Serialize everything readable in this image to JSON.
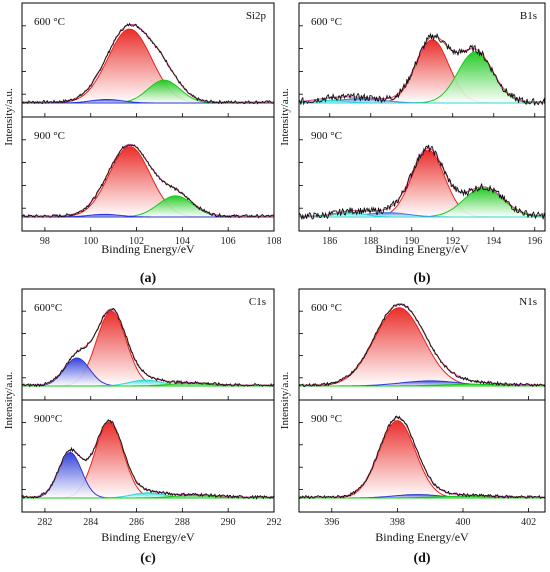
{
  "chart_data": [
    {
      "id": "a",
      "type": "line",
      "panel_label": "(a)",
      "element": "Si2p",
      "xlabel": "Binding Energy/eV",
      "ylabel": "Intensity/a.u.",
      "xlim": [
        97,
        108
      ],
      "xticks": [
        "98",
        "100",
        "102",
        "104",
        "106",
        "108"
      ],
      "xtick_values": [
        98,
        100,
        102,
        104,
        106,
        108
      ],
      "subplots": [
        {
          "temp": "600 °C",
          "peak_max": 1.0,
          "components": [
            {
              "color": "#e8231f",
              "center": 101.7,
              "sigma": 0.95,
              "height": 0.84
            },
            {
              "color": "#19c819",
              "center": 103.2,
              "sigma": 0.7,
              "height": 0.26
            },
            {
              "color": "#2838d8",
              "center": 100.7,
              "sigma": 0.7,
              "height": 0.04
            }
          ]
        },
        {
          "temp": "900 °C",
          "peak_max": 1.0,
          "components": [
            {
              "color": "#e8231f",
              "center": 101.7,
              "sigma": 0.9,
              "height": 0.8
            },
            {
              "color": "#19c819",
              "center": 103.7,
              "sigma": 0.75,
              "height": 0.24
            },
            {
              "color": "#2838d8",
              "center": 100.6,
              "sigma": 0.7,
              "height": 0.03
            }
          ]
        }
      ]
    },
    {
      "id": "b",
      "type": "line",
      "panel_label": "(b)",
      "element": "B1s",
      "xlabel": "Binding Energy/eV",
      "ylabel": "Intensity/a.u.",
      "xlim": [
        184.5,
        196.5
      ],
      "xticks": [
        "186",
        "188",
        "190",
        "192",
        "194",
        "196"
      ],
      "xtick_values": [
        186,
        188,
        190,
        192,
        194,
        196
      ],
      "subplots": [
        {
          "temp": "600 °C",
          "components": [
            {
              "color": "#e8231f",
              "center": 191.0,
              "sigma": 0.8,
              "height": 0.72
            },
            {
              "color": "#19c819",
              "center": 193.1,
              "sigma": 0.85,
              "height": 0.58
            },
            {
              "color": "#3d7ee0",
              "center": 187.5,
              "sigma": 1.1,
              "height": 0.05
            },
            {
              "color": "#2bd8d8",
              "center": 186.0,
              "sigma": 0.8,
              "height": 0.03
            }
          ]
        },
        {
          "temp": "900 °C",
          "components": [
            {
              "color": "#e8231f",
              "center": 190.8,
              "sigma": 0.8,
              "height": 0.76
            },
            {
              "color": "#19c819",
              "center": 193.5,
              "sigma": 0.95,
              "height": 0.33
            },
            {
              "color": "#3d7ee0",
              "center": 188.8,
              "sigma": 1.0,
              "height": 0.05
            },
            {
              "color": "#2bd8d8",
              "center": 187.0,
              "sigma": 0.7,
              "height": 0.05
            }
          ]
        }
      ]
    },
    {
      "id": "c",
      "type": "line",
      "panel_label": "(c)",
      "element": "C1s",
      "xlabel": "Binding Energy/eV",
      "ylabel": "Intensity/a.u.",
      "xlim": [
        281,
        292
      ],
      "xticks": [
        "282",
        "284",
        "286",
        "288",
        "290",
        "292"
      ],
      "xtick_values": [
        282,
        284,
        286,
        288,
        290,
        292
      ],
      "subplots": [
        {
          "temp": "600°C",
          "components": [
            {
              "color": "#e8231f",
              "center": 284.9,
              "sigma": 0.65,
              "height": 0.88
            },
            {
              "color": "#2838d8",
              "center": 283.4,
              "sigma": 0.55,
              "height": 0.33
            },
            {
              "color": "#2bd8d8",
              "center": 286.4,
              "sigma": 0.7,
              "height": 0.07
            },
            {
              "color": "#19c819",
              "center": 288.3,
              "sigma": 0.9,
              "height": 0.03
            }
          ]
        },
        {
          "temp": "900°C",
          "components": [
            {
              "color": "#e8231f",
              "center": 284.8,
              "sigma": 0.62,
              "height": 0.88
            },
            {
              "color": "#2838d8",
              "center": 283.1,
              "sigma": 0.5,
              "height": 0.53
            },
            {
              "color": "#2bd8d8",
              "center": 286.5,
              "sigma": 0.7,
              "height": 0.06
            },
            {
              "color": "#19c819",
              "center": 288.5,
              "sigma": 0.9,
              "height": 0.03
            }
          ]
        }
      ]
    },
    {
      "id": "d",
      "type": "line",
      "panel_label": "(d)",
      "element": "N1s",
      "xlabel": "Binding Energy/eV",
      "ylabel": "Intensity/a.u.",
      "xlim": [
        395,
        402.5
      ],
      "xticks": [
        "396",
        "398",
        "400",
        "402"
      ],
      "xtick_values": [
        396,
        398,
        400,
        402
      ],
      "subplots": [
        {
          "temp": "600 °C",
          "components": [
            {
              "color": "#e8231f",
              "center": 398.05,
              "sigma": 0.75,
              "height": 0.92
            },
            {
              "color": "#2838d8",
              "center": 399.0,
              "sigma": 0.9,
              "height": 0.06
            },
            {
              "color": "#19c819",
              "center": 400.3,
              "sigma": 1.0,
              "height": 0.02
            }
          ]
        },
        {
          "temp": "900 °C",
          "components": [
            {
              "color": "#e8231f",
              "center": 398.0,
              "sigma": 0.55,
              "height": 0.9
            },
            {
              "color": "#2838d8",
              "center": 398.6,
              "sigma": 0.7,
              "height": 0.04
            },
            {
              "color": "#19c819",
              "center": 400.0,
              "sigma": 0.9,
              "height": 0.02
            }
          ]
        }
      ]
    }
  ]
}
